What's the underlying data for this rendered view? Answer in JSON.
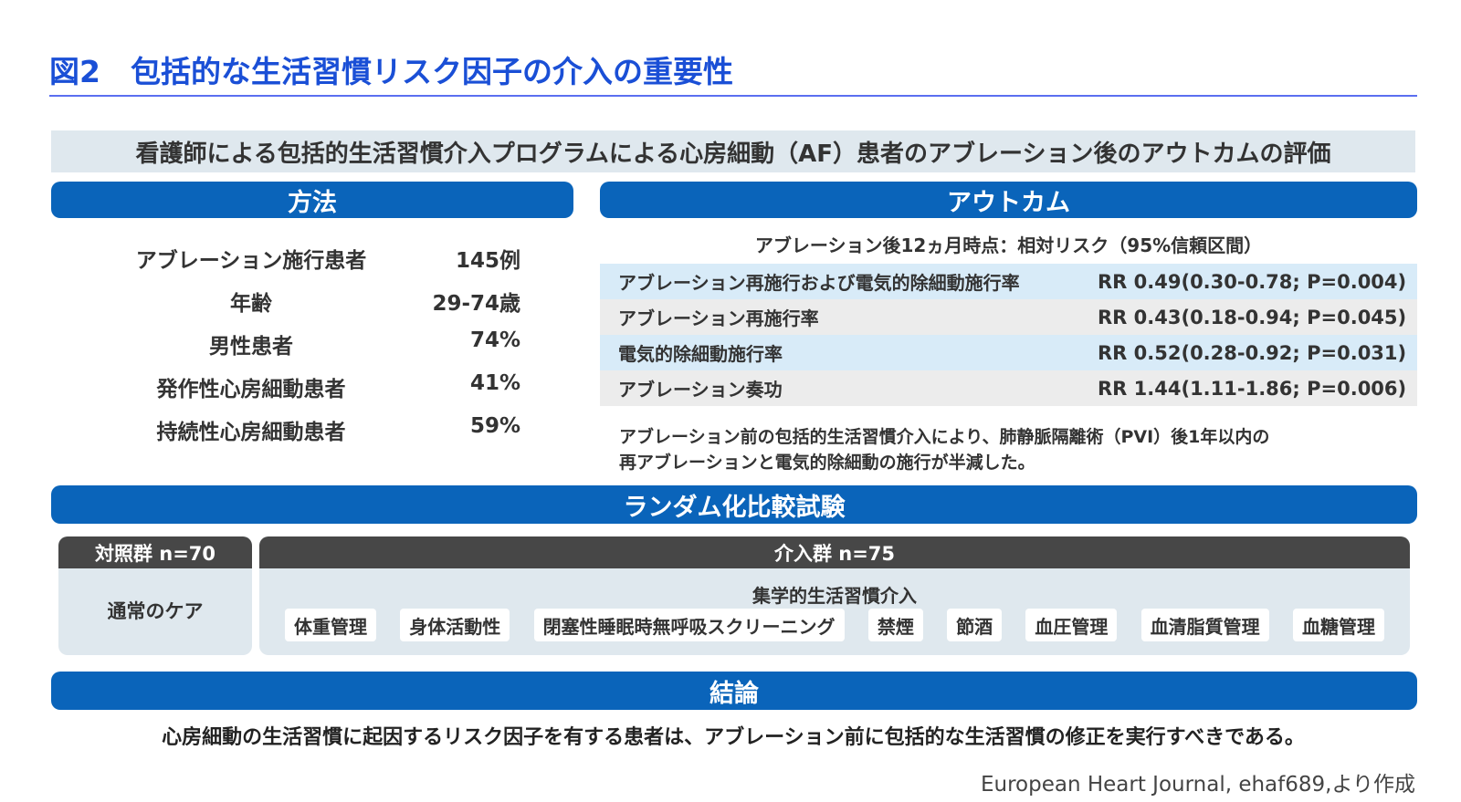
{
  "figure_title": "図2　包括的な生活習慣リスク因子の介入の重要性",
  "study_title": "看護師による包括的生活習慣介入プログラムによる心房細動（AF）患者のアブレーション後のアウトカムの評価",
  "methods": {
    "header": "方法",
    "rows": [
      {
        "label": "アブレーション施行患者",
        "value": "145例"
      },
      {
        "label": "年齢",
        "value": "29-74歳"
      },
      {
        "label": "男性患者",
        "value": "74%"
      },
      {
        "label": "発作性心房細動患者",
        "value": "41%"
      },
      {
        "label": "持続性心房細動患者",
        "value": "59%"
      }
    ]
  },
  "outcome": {
    "header": "アウトカム",
    "subtitle": "アブレーション後12ヵ月時点：相対リスク（95%信頼区間）",
    "rows": [
      {
        "label": "アブレーション再施行および電気的除細動施行率",
        "value": "RR 0.49(0.30-0.78; P=0.004)"
      },
      {
        "label": "アブレーション再施行率",
        "value": "RR 0.43(0.18-0.94; P=0.045)"
      },
      {
        "label": "電気的除細動施行率",
        "value": "RR 0.52(0.28-0.92; P=0.031)"
      },
      {
        "label": "アブレーション奏功",
        "value": "RR 1.44(1.11-1.86; P=0.006)"
      }
    ],
    "note_line1": "アブレーション前の包括的生活習慣介入により、肺静脈隔離術（PVI）後1年以内の",
    "note_line2": "再アブレーションと電気的除細動の施行が半減した。"
  },
  "rct": {
    "header": "ランダム化比較試験",
    "control": {
      "header": "対照群 n=70",
      "care": "通常のケア"
    },
    "intervention": {
      "header": "介入群 n=75",
      "subtitle": "集学的生活習慣介入",
      "items": [
        "体重管理",
        "身体活動性",
        "閉塞性睡眠時無呼吸スクリーニング",
        "禁煙",
        "節酒",
        "血圧管理",
        "血清脂質管理",
        "血糖管理"
      ]
    }
  },
  "conclusion": {
    "header": "結論",
    "text": "心房細動の生活習慣に起因するリスク因子を有する患者は、アブレーション前に包括的な生活習慣の修正を実行すべきである。"
  },
  "source": "European Heart Journal, ehaf689,より作成"
}
